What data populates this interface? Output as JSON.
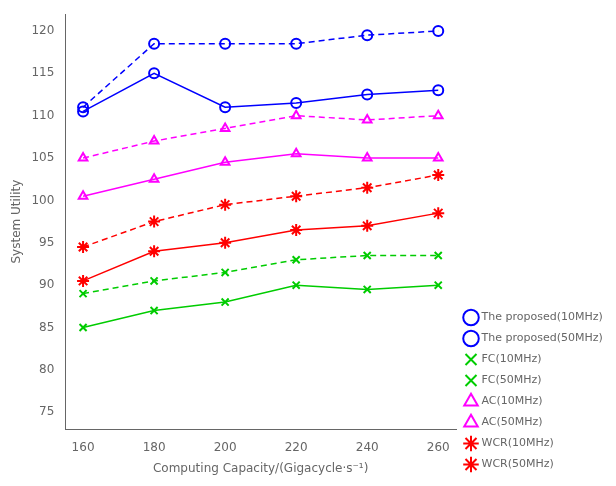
{
  "chart_data": {
    "type": "line",
    "xlabel": "Computing Capacity/(Gigacycle·s⁻¹)",
    "ylabel": "System Utility",
    "x": [
      160,
      180,
      200,
      220,
      240,
      260
    ],
    "series": [
      {
        "name": "The proposed(10MHz)",
        "color": "#0000FF",
        "line_style": "solid",
        "marker": "circle",
        "values": [
          110.5,
          115.0,
          111.0,
          111.5,
          112.5,
          113.0
        ]
      },
      {
        "name": "The proposed(50MHz)",
        "color": "#0000FF",
        "line_style": "dashed",
        "marker": "circle",
        "values": [
          111.0,
          118.5,
          118.5,
          118.5,
          119.5,
          120.0
        ]
      },
      {
        "name": "FC(10MHz)",
        "color": "#00CC00",
        "line_style": "solid",
        "marker": "x",
        "values": [
          85.0,
          87.0,
          88.0,
          90.0,
          89.5,
          90.0
        ]
      },
      {
        "name": "FC(50MHz)",
        "color": "#00CC00",
        "line_style": "dashed",
        "marker": "x",
        "values": [
          89.0,
          90.5,
          91.5,
          93.0,
          93.5,
          93.5
        ]
      },
      {
        "name": "AC(10MHz)",
        "color": "#FF00FF",
        "line_style": "solid",
        "marker": "triangle",
        "values": [
          100.5,
          102.5,
          104.5,
          105.5,
          105.0,
          105.0
        ]
      },
      {
        "name": "AC(50MHz)",
        "color": "#FF00FF",
        "line_style": "dashed",
        "marker": "triangle",
        "values": [
          105.0,
          107.0,
          108.5,
          110.0,
          109.5,
          110.0
        ]
      },
      {
        "name": "WCR(10MHz)",
        "color": "#FF0000",
        "line_style": "solid",
        "marker": "star",
        "values": [
          90.5,
          94.0,
          95.0,
          96.5,
          97.0,
          98.5
        ]
      },
      {
        "name": "WCR(50MHz)",
        "color": "#FF0000",
        "line_style": "dashed",
        "marker": "star",
        "values": [
          94.5,
          97.5,
          99.5,
          100.5,
          101.5,
          103.0
        ]
      }
    ],
    "xlim": [
      155,
      265
    ],
    "xticks": [
      160,
      180,
      200,
      220,
      240,
      260
    ],
    "ylim": [
      73,
      122
    ],
    "yticks": [
      75,
      80,
      85,
      90,
      95,
      100,
      105,
      110,
      115,
      120
    ],
    "grid": false,
    "legend": "lower right"
  }
}
